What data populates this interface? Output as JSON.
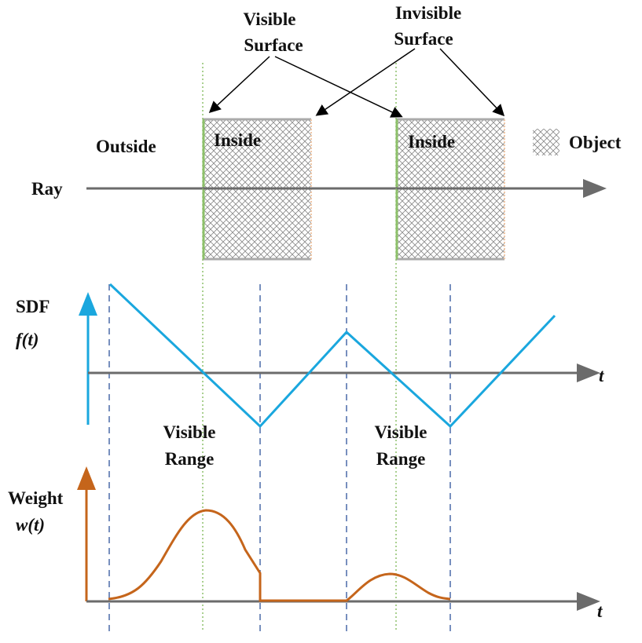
{
  "labels": {
    "visible_surface_1": "Visible",
    "visible_surface_2": "Surface",
    "invisible_surface_1": "Invisible",
    "invisible_surface_2": "Surface",
    "outside": "Outside",
    "inside_1": "Inside",
    "inside_2": "Inside",
    "object": "Object",
    "ray": "Ray",
    "sdf": "SDF",
    "sdf_fn": "f(t)",
    "weight": "Weight",
    "weight_fn": "w(t)",
    "t_axis_sdf": "t",
    "t_axis_weight": "t",
    "visible_range_a1": "Visible",
    "visible_range_a2": "Range",
    "visible_range_b1": "Visible",
    "visible_range_b2": "Range"
  },
  "colors": {
    "sdf_curve": "#1aa7de",
    "weight_curve": "#c5651b",
    "axis": "#6b6b6b",
    "visible_surface_edge": "#8dc06b",
    "invisible_surface_edge": "#f0c8a8",
    "dashed_guides": "#4a6aa8"
  }
}
